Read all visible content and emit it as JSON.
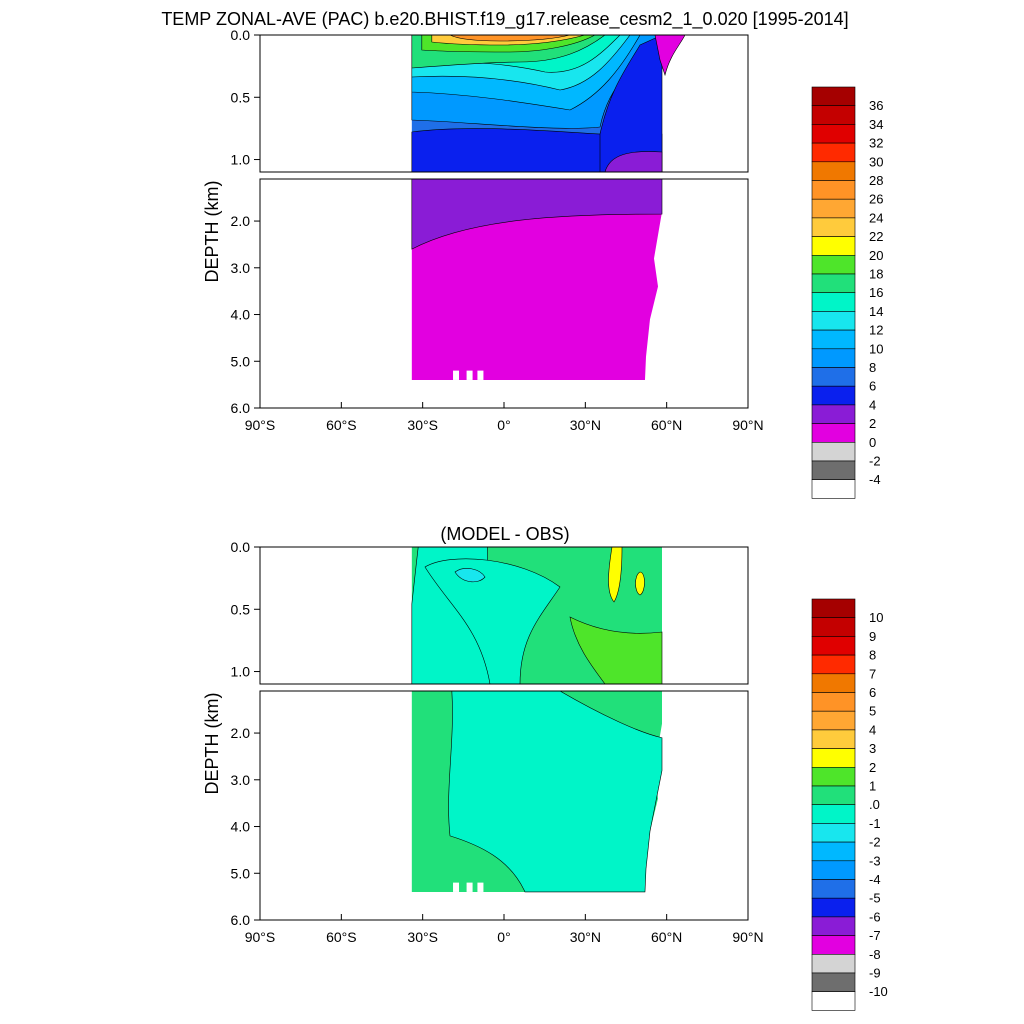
{
  "chart_data": [
    {
      "type": "heatmap",
      "title": "TEMP ZONAL-AVE (PAC) b.e20.BHIST.f19_g17.release_cesm2_1_0.020 [1995-2014]",
      "ylabel": "DEPTH (km)",
      "x_ticks": [
        "90°S",
        "60°S",
        "30°S",
        "0°",
        "30°N",
        "60°N",
        "90°N"
      ],
      "y_ticks_upper": [
        "0.0",
        "0.5",
        "1.0"
      ],
      "y_ticks_lower": [
        "2.0",
        "3.0",
        "4.0",
        "5.0",
        "6.0"
      ],
      "xlim": [
        -90,
        90
      ],
      "ylim_km": [
        0,
        6
      ],
      "colorbar_labels": [
        "36",
        "34",
        "32",
        "30",
        "28",
        "26",
        "24",
        "22",
        "20",
        "18",
        "16",
        "14",
        "12",
        "10",
        "8",
        "6",
        "4",
        "2",
        "0",
        "-2",
        "-4"
      ],
      "colorbar_colors": [
        "#a50000",
        "#c40000",
        "#e00000",
        "#ff2a00",
        "#f07800",
        "#ff9326",
        "#ffa733",
        "#ffcb3c",
        "#ffff00",
        "#4ee52a",
        "#21e07a",
        "#00f5c8",
        "#18e6ee",
        "#00b8ff",
        "#0099ff",
        "#1f6fe8",
        "#0a20ee",
        "#8a1cd6",
        "#e200e0",
        "#d4d4d4",
        "#6e6e6e",
        "#ffffff"
      ],
      "ocean_lat_range": [
        -34,
        62
      ]
    },
    {
      "type": "heatmap",
      "title": "(MODEL - OBS)",
      "ylabel": "DEPTH (km)",
      "x_ticks": [
        "90°S",
        "60°S",
        "30°S",
        "0°",
        "30°N",
        "60°N",
        "90°N"
      ],
      "y_ticks_upper": [
        "0.0",
        "0.5",
        "1.0"
      ],
      "y_ticks_lower": [
        "2.0",
        "3.0",
        "4.0",
        "5.0",
        "6.0"
      ],
      "xlim": [
        -90,
        90
      ],
      "ylim_km": [
        0,
        6
      ],
      "colorbar_labels": [
        "10",
        "9",
        "8",
        "7",
        "6",
        "5",
        "4",
        "3",
        "2",
        "1",
        ".0",
        "-1",
        "-2",
        "-3",
        "-4",
        "-5",
        "-6",
        "-7",
        "-8",
        "-9",
        "-10"
      ],
      "colorbar_colors": [
        "#a50000",
        "#c40000",
        "#e00000",
        "#ff2a00",
        "#f07800",
        "#ff9326",
        "#ffa733",
        "#ffcb3c",
        "#ffff00",
        "#4ee52a",
        "#21e07a",
        "#00f5c8",
        "#18e6ee",
        "#00b8ff",
        "#0099ff",
        "#1f6fe8",
        "#0a20ee",
        "#8a1cd6",
        "#e200e0",
        "#d4d4d4",
        "#6e6e6e",
        "#ffffff"
      ],
      "ocean_lat_range": [
        -34,
        62
      ]
    }
  ]
}
